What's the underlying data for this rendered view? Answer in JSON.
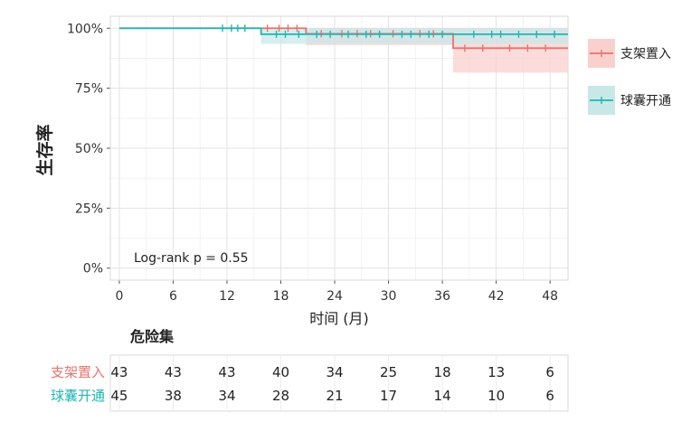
{
  "chart_data": {
    "type": "line",
    "subtype": "kaplan-meier",
    "xlabel": "时间 (月)",
    "ylabel": "生存率",
    "xlim": [
      -1,
      50
    ],
    "ylim": [
      -0.05,
      1.05
    ],
    "x_ticks": [
      0,
      6,
      12,
      18,
      24,
      30,
      36,
      42,
      48
    ],
    "y_ticks": [
      0,
      0.25,
      0.5,
      0.75,
      1.0
    ],
    "y_tick_labels": [
      "0%",
      "25%",
      "50%",
      "75%",
      "100%"
    ],
    "grid": true,
    "annotation": "Log-rank p = 0.55",
    "legend_placement": "right",
    "series": [
      {
        "name": "支架置入",
        "color": "#e8736c",
        "fill": "#f9d0cd",
        "steps": [
          [
            0,
            1.0
          ],
          [
            20.8,
            0.977
          ],
          [
            37.2,
            0.917
          ],
          [
            50,
            0.917
          ]
        ],
        "ci": [
          [
            0,
            1.0,
            1.0
          ],
          [
            16,
            1.0,
            1.0
          ],
          [
            20.8,
            0.93,
            1.0
          ],
          [
            37.2,
            0.815,
            1.0
          ],
          [
            50,
            0.815,
            1.0
          ]
        ],
        "censors": [
          [
            16.5,
            1.0
          ],
          [
            17.8,
            1.0
          ],
          [
            18.8,
            1.0
          ],
          [
            19.8,
            1.0
          ],
          [
            22.5,
            0.977
          ],
          [
            24.8,
            0.977
          ],
          [
            26.5,
            0.977
          ],
          [
            28.0,
            0.977
          ],
          [
            30.5,
            0.977
          ],
          [
            33.5,
            0.977
          ],
          [
            35.0,
            0.977
          ],
          [
            38.5,
            0.917
          ],
          [
            40.5,
            0.917
          ],
          [
            43.5,
            0.917
          ],
          [
            45.5,
            0.917
          ],
          [
            47.5,
            0.917
          ]
        ]
      },
      {
        "name": "球囊开通",
        "color": "#1fb5b5",
        "fill": "#c8e8e8",
        "steps": [
          [
            0,
            1.0
          ],
          [
            15.8,
            0.975
          ],
          [
            50,
            0.975
          ]
        ],
        "ci": [
          [
            0,
            1.0,
            1.0
          ],
          [
            15.8,
            0.935,
            1.0
          ],
          [
            50,
            0.935,
            1.0
          ]
        ],
        "censors": [
          [
            11.5,
            1.0
          ],
          [
            12.5,
            1.0
          ],
          [
            13.2,
            1.0
          ],
          [
            14.0,
            1.0
          ],
          [
            17.5,
            0.975
          ],
          [
            18.5,
            0.975
          ],
          [
            20.0,
            0.975
          ],
          [
            22.0,
            0.975
          ],
          [
            23.5,
            0.975
          ],
          [
            25.5,
            0.975
          ],
          [
            27.5,
            0.975
          ],
          [
            29.0,
            0.975
          ],
          [
            31.5,
            0.975
          ],
          [
            32.5,
            0.975
          ],
          [
            34.5,
            0.975
          ],
          [
            36.0,
            0.975
          ],
          [
            39.5,
            0.975
          ],
          [
            41.5,
            0.975
          ],
          [
            42.5,
            0.975
          ],
          [
            44.5,
            0.975
          ],
          [
            46.5,
            0.975
          ],
          [
            48.5,
            0.975
          ]
        ]
      }
    ],
    "risk_table": {
      "title": "危险集",
      "times": [
        0,
        6,
        12,
        18,
        24,
        30,
        36,
        42,
        48
      ],
      "rows": [
        {
          "name": "支架置入",
          "color": "#e8736c",
          "values": [
            43,
            43,
            43,
            40,
            34,
            25,
            18,
            13,
            6
          ]
        },
        {
          "name": "球囊开通",
          "color": "#1fb5b5",
          "values": [
            45,
            38,
            34,
            28,
            21,
            17,
            14,
            10,
            6
          ]
        }
      ]
    }
  }
}
